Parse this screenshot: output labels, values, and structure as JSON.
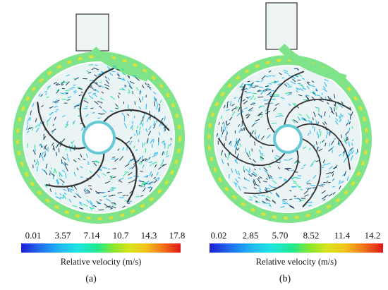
{
  "panels": [
    {
      "label": "(a)",
      "colorbar": {
        "ticks": [
          "0.01",
          "3.57",
          "7.14",
          "10.7",
          "14.3",
          "17.8"
        ],
        "quantity": "Relative velocity (m/s)"
      },
      "blade_count": 5
    },
    {
      "label": "(b)",
      "colorbar": {
        "ticks": [
          "0.02",
          "2.85",
          "5.70",
          "8.52",
          "11.4",
          "14.2"
        ],
        "quantity": "Relative velocity (m/s)"
      },
      "blade_count": 7
    }
  ],
  "colors": {
    "low": "#1d1dd6",
    "mid_low": "#20b6f2",
    "mid": "#22e88c",
    "mid_high": "#d9e21e",
    "high": "#e01616",
    "vector_dark": "#1c3f5a",
    "housing_outline": "#333333"
  }
}
